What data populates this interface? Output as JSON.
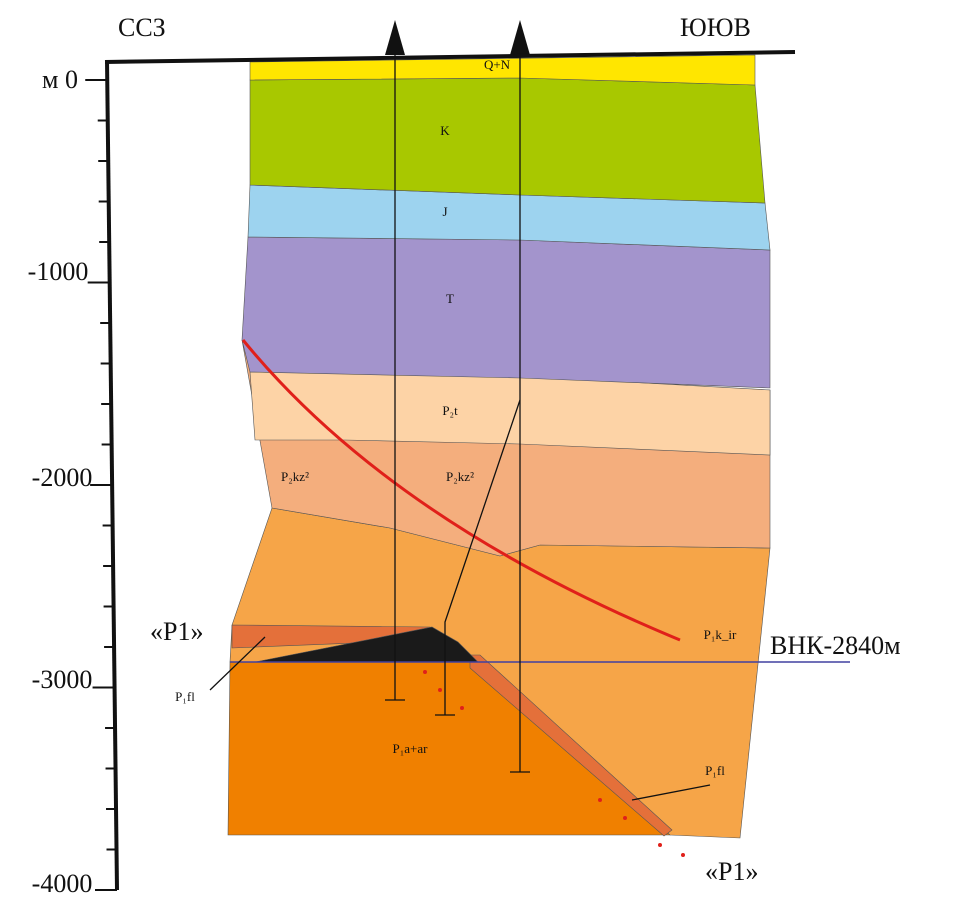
{
  "header": {
    "left": "ССЗ",
    "right": "ЮЮВ"
  },
  "depth_axis": {
    "ticks": [
      "м 0",
      "-1000",
      "-2000",
      "-3000",
      "-4000"
    ]
  },
  "layers": {
    "qn": "Q+N",
    "k": "K",
    "j": "J",
    "t": "T",
    "p2t": "P₂t",
    "p2kz_left": "P₂kz²",
    "p2kz_right": "P₂kz²",
    "p1kir": "P₁k_ir",
    "p1aar": "P₁a+ar",
    "p1fl_left": "P₁fl",
    "p1fl_right": "P₁fl"
  },
  "annotations": {
    "p1_left": "«P1»",
    "p1_bottom": "«P1»",
    "owc": "ВНК-2840м"
  }
}
